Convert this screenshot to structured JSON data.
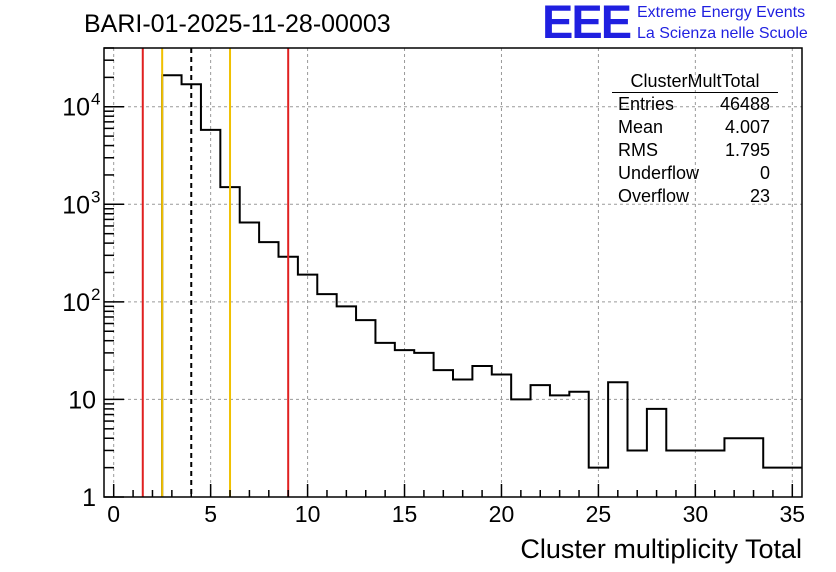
{
  "chart_data": {
    "type": "histogram",
    "title": "BARI-01-2025-11-28-00003",
    "xlabel": "Cluster multiplicity Total",
    "ylabel": "",
    "yscale": "log",
    "xlim": [
      -0.5,
      35.5
    ],
    "ylim": [
      1,
      40000
    ],
    "grid": true,
    "xticks": [
      0,
      5,
      10,
      15,
      20,
      25,
      30,
      35
    ],
    "xtick_labels": [
      "0",
      "5",
      "10",
      "15",
      "20",
      "25",
      "30",
      "35"
    ],
    "yticks": [
      1,
      10,
      100,
      1000,
      10000
    ],
    "ytick_labels": [
      {
        "base": "1",
        "exp": ""
      },
      {
        "base": "10",
        "exp": ""
      },
      {
        "base": "10",
        "exp": "2"
      },
      {
        "base": "10",
        "exp": "3"
      },
      {
        "base": "10",
        "exp": "4"
      }
    ],
    "bins": {
      "start": 2.5,
      "width": 1,
      "values": [
        21000,
        17000,
        5800,
        1500,
        650,
        410,
        290,
        190,
        120,
        90,
        65,
        38,
        32,
        30,
        20,
        16,
        22,
        18,
        10,
        14,
        11,
        12,
        2,
        15,
        3,
        8,
        3,
        3,
        3,
        4,
        4,
        2,
        2
      ]
    },
    "lines": [
      {
        "name": "red-low",
        "x": 1.5,
        "color": "#e02020",
        "style": "solid"
      },
      {
        "name": "yellow-low",
        "x": 2.5,
        "color": "#f0c000",
        "style": "solid"
      },
      {
        "name": "mean-dashed",
        "x": 4.0,
        "color": "#000000",
        "style": "dashed"
      },
      {
        "name": "yellow-high",
        "x": 6.0,
        "color": "#f0c000",
        "style": "solid"
      },
      {
        "name": "red-high",
        "x": 9.0,
        "color": "#e02020",
        "style": "solid"
      }
    ]
  },
  "stats": {
    "name": "ClusterMultTotal",
    "rows": [
      {
        "label": "Entries",
        "value": "46488"
      },
      {
        "label": "Mean",
        "value": "4.007"
      },
      {
        "label": "RMS",
        "value": "1.795"
      },
      {
        "label": "Underflow",
        "value": "0"
      },
      {
        "label": "Overflow",
        "value": "23"
      }
    ]
  },
  "logo": {
    "mark": "EEE",
    "line1": "Extreme Energy Events",
    "line2": "La Scienza nelle Scuole"
  },
  "colors": {
    "logo": "#1f1fe0",
    "grid": "#9a9a9a",
    "red": "#e02020",
    "yellow": "#f0c000"
  }
}
